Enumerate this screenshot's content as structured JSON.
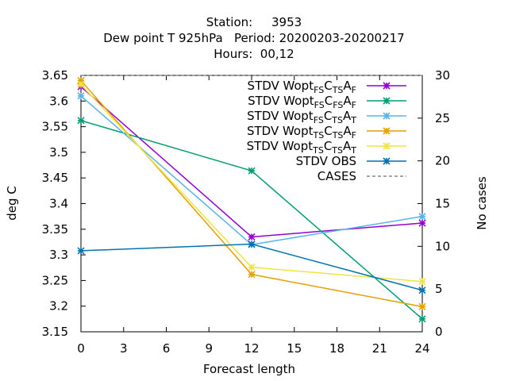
{
  "title": {
    "line1": "Station:     3953",
    "line2": "Dew point T 925hPa   Period: 20200203-20200217",
    "line3": "Hours:  00,12"
  },
  "chart_data": {
    "type": "line",
    "xlabel": "Forecast length",
    "ylabel": "deg C",
    "y2label": "No cases",
    "xlim": [
      0,
      24
    ],
    "ylim": [
      3.15,
      3.65
    ],
    "y2lim": [
      0,
      30
    ],
    "xticks": [
      "0",
      "3",
      "6",
      "9",
      "12",
      "15",
      "18",
      "21",
      "24"
    ],
    "yticks": [
      "3.15",
      "3.2",
      "3.25",
      "3.3",
      "3.35",
      "3.4",
      "3.45",
      "3.5",
      "3.55",
      "3.6",
      "3.65"
    ],
    "y2ticks": [
      "0",
      "5",
      "10",
      "15",
      "20",
      "25",
      "30"
    ],
    "legend_position": "top-right",
    "grid": false,
    "series": [
      {
        "name_main": "STDV Wopt",
        "sub1": "FS",
        "mid1": "C",
        "sub2": "TS",
        "mid2": "A",
        "sub3": "F",
        "color": "#9400d3",
        "x": [
          0,
          12,
          24
        ],
        "y": [
          3.628,
          3.335,
          3.362
        ]
      },
      {
        "name_main": "STDV Wopt",
        "sub1": "FS",
        "mid1": "C",
        "sub2": "FS",
        "mid2": "A",
        "sub3": "F",
        "color": "#009e73",
        "x": [
          0,
          12,
          24
        ],
        "y": [
          3.562,
          3.464,
          3.175
        ]
      },
      {
        "name_main": "STDV Wopt",
        "sub1": "FS",
        "mid1": "C",
        "sub2": "TS",
        "mid2": "A",
        "sub3": "T",
        "color": "#56b4e9",
        "x": [
          0,
          12,
          24
        ],
        "y": [
          3.61,
          3.32,
          3.375
        ]
      },
      {
        "name_main": "STDV Wopt",
        "sub1": "TS",
        "mid1": "C",
        "sub2": "TS",
        "mid2": "A",
        "sub3": "F",
        "color": "#e69f00",
        "x": [
          0,
          12,
          24
        ],
        "y": [
          3.64,
          3.262,
          3.199
        ]
      },
      {
        "name_main": "STDV Wopt",
        "sub1": "TS",
        "mid1": "C",
        "sub2": "TS",
        "mid2": "A",
        "sub3": "T",
        "color": "#f0e442",
        "x": [
          0,
          12,
          24
        ],
        "y": [
          3.632,
          3.276,
          3.248
        ]
      },
      {
        "name_main": "STDV OBS",
        "color": "#0072b2",
        "x": [
          0,
          12,
          24
        ],
        "y": [
          3.308,
          3.321,
          3.231
        ]
      },
      {
        "name_main": "CASES",
        "color": "#888888",
        "dashed": true,
        "axis": "y2",
        "x": [
          0,
          12,
          24
        ],
        "y": [
          30,
          30,
          30
        ]
      }
    ]
  }
}
